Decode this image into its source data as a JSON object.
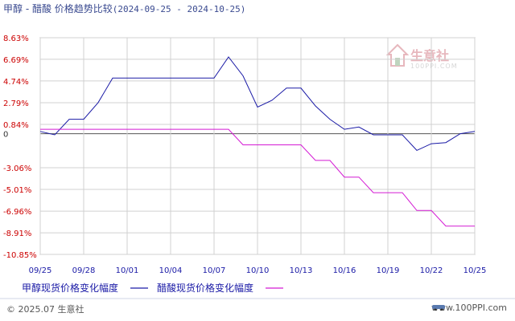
{
  "title": {
    "main": "甲醇 - 醋酸 价格趋势比较",
    "range": "(2024-09-25 - 2024-10-25)"
  },
  "footer": {
    "copyright": "© 2025.07 生意社",
    "url": "www.100PPI.com"
  },
  "watermark": {
    "name": "生意社",
    "sub": "100PPI.COM"
  },
  "colors": {
    "methanol": "#1a1aa6",
    "acetic": "#d41ad4",
    "grid": "#d0d0d0",
    "zero": "#555555",
    "tick_red": "#cc0000",
    "tick_blue": "#1a1aa6"
  },
  "chart_data": {
    "type": "line",
    "title": "甲醇 - 醋酸 价格趋势比较(2024-09-25 - 2024-10-25)",
    "xlabel": "",
    "ylabel": "",
    "x_ticks": [
      "09/25",
      "09/28",
      "10/01",
      "10/04",
      "10/07",
      "10/10",
      "10/13",
      "10/16",
      "10/19",
      "10/22",
      "10/25"
    ],
    "y_ticks": [
      "8.63%",
      "6.69%",
      "4.74%",
      "2.79%",
      "0.84%",
      "0",
      "-3.06%",
      "-5.01%",
      "-6.96%",
      "-8.91%",
      "-10.85%"
    ],
    "y_tick_values": [
      8.63,
      6.69,
      4.74,
      2.79,
      0.84,
      0,
      -3.06,
      -5.01,
      -6.96,
      -8.91,
      -10.85
    ],
    "ylim": [
      -10.85,
      8.63
    ],
    "xlim": [
      "09/25",
      "10/25"
    ],
    "grid": true,
    "legend_position": "bottom-left",
    "series": [
      {
        "name": "甲醇现货价格变化幅度",
        "points": [
          [
            "09/25",
            0.2
          ],
          [
            "09/26",
            -0.1
          ],
          [
            "09/27",
            1.3
          ],
          [
            "09/28",
            1.3
          ],
          [
            "09/29",
            2.8
          ],
          [
            "09/30",
            5.0
          ],
          [
            "10/01",
            5.0
          ],
          [
            "10/02",
            5.0
          ],
          [
            "10/03",
            5.0
          ],
          [
            "10/04",
            5.0
          ],
          [
            "10/05",
            5.0
          ],
          [
            "10/06",
            5.0
          ],
          [
            "10/07",
            5.0
          ],
          [
            "10/08",
            6.9
          ],
          [
            "10/09",
            5.2
          ],
          [
            "10/10",
            2.4
          ],
          [
            "10/11",
            3.0
          ],
          [
            "10/12",
            4.1
          ],
          [
            "10/13",
            4.1
          ],
          [
            "10/14",
            2.5
          ],
          [
            "10/15",
            1.3
          ],
          [
            "10/16",
            0.4
          ],
          [
            "10/17",
            0.6
          ],
          [
            "10/18",
            -0.1
          ],
          [
            "10/19",
            -0.1
          ],
          [
            "10/20",
            -0.1
          ],
          [
            "10/21",
            -1.5
          ],
          [
            "10/22",
            -0.9
          ],
          [
            "10/23",
            -0.8
          ],
          [
            "10/24",
            0.0
          ],
          [
            "10/25",
            0.2
          ]
        ]
      },
      {
        "name": "醋酸现货价格变化幅度",
        "points": [
          [
            "09/25",
            0.4
          ],
          [
            "09/26",
            0.4
          ],
          [
            "09/27",
            0.4
          ],
          [
            "09/28",
            0.4
          ],
          [
            "09/29",
            0.4
          ],
          [
            "09/30",
            0.4
          ],
          [
            "10/01",
            0.4
          ],
          [
            "10/02",
            0.4
          ],
          [
            "10/03",
            0.4
          ],
          [
            "10/04",
            0.4
          ],
          [
            "10/05",
            0.4
          ],
          [
            "10/06",
            0.4
          ],
          [
            "10/07",
            0.4
          ],
          [
            "10/08",
            0.4
          ],
          [
            "10/09",
            -1.0
          ],
          [
            "10/10",
            -1.0
          ],
          [
            "10/11",
            -1.0
          ],
          [
            "10/12",
            -1.0
          ],
          [
            "10/13",
            -1.0
          ],
          [
            "10/14",
            -2.4
          ],
          [
            "10/15",
            -2.4
          ],
          [
            "10/16",
            -3.9
          ],
          [
            "10/17",
            -3.9
          ],
          [
            "10/18",
            -5.3
          ],
          [
            "10/19",
            -5.3
          ],
          [
            "10/20",
            -5.3
          ],
          [
            "10/21",
            -6.9
          ],
          [
            "10/22",
            -6.9
          ],
          [
            "10/23",
            -8.3
          ],
          [
            "10/24",
            -8.3
          ],
          [
            "10/25",
            -8.3
          ]
        ]
      }
    ]
  }
}
